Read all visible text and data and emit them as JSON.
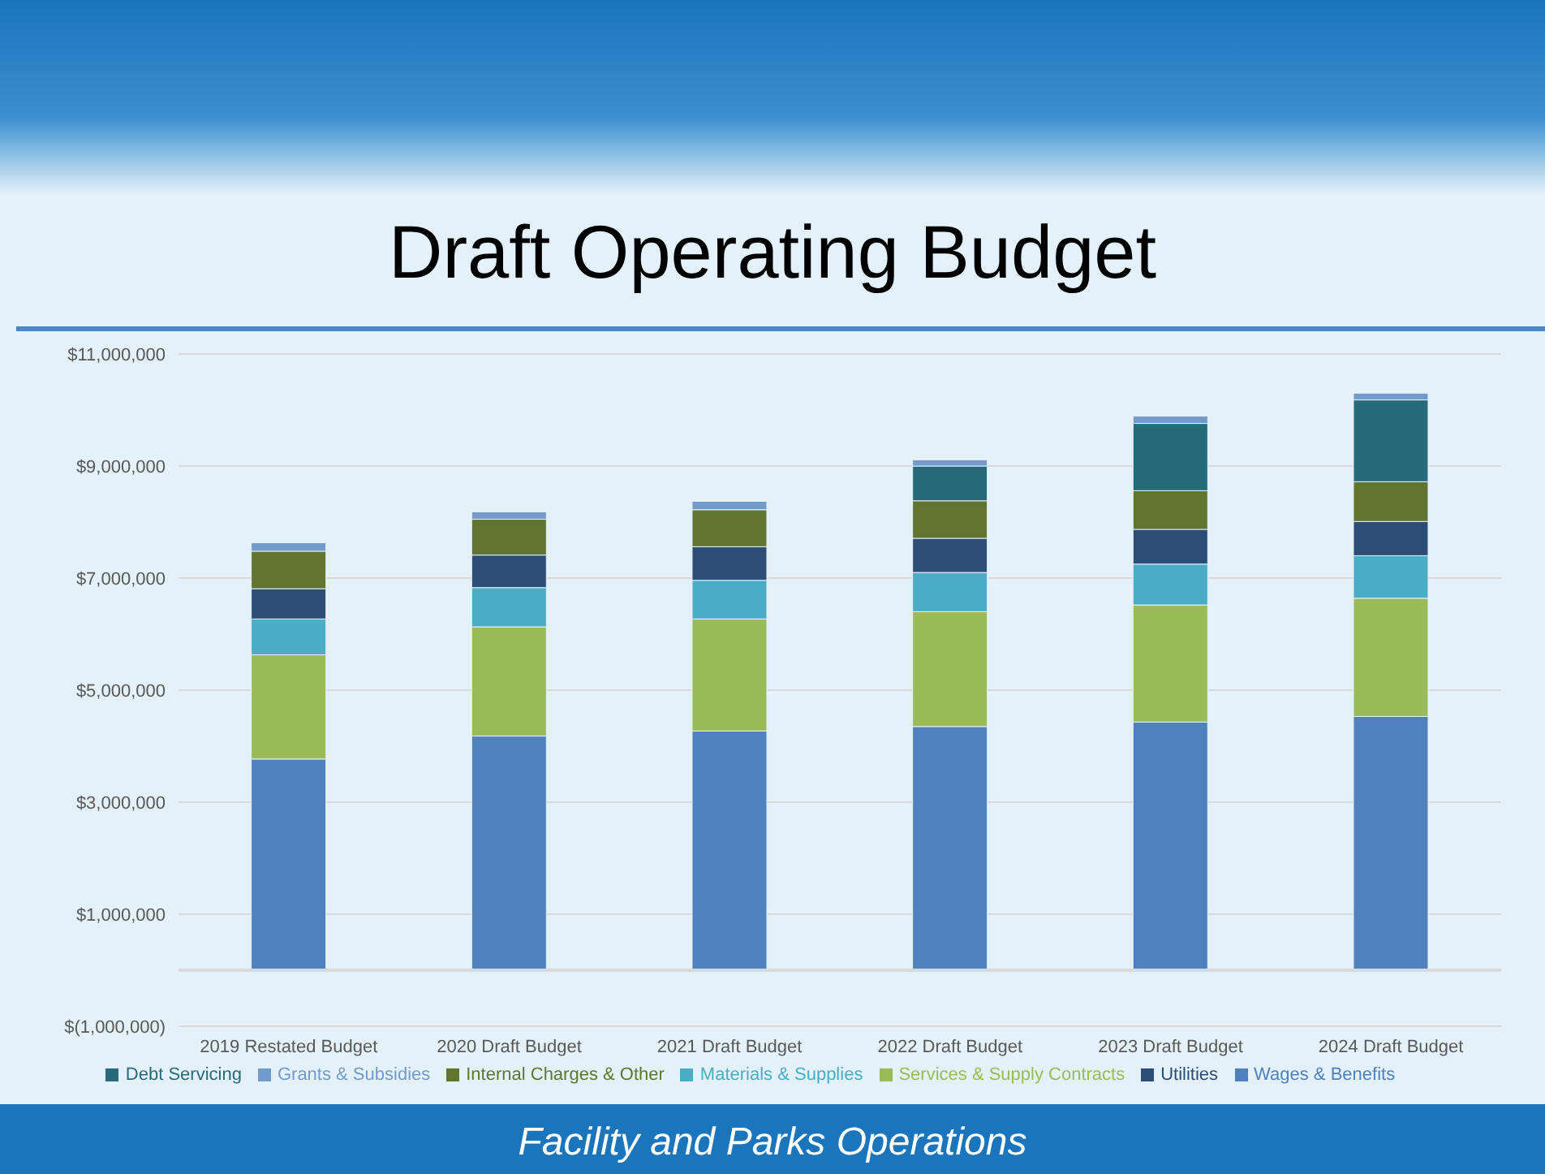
{
  "chart_data": {
    "type": "bar",
    "title": "Draft Operating Budget",
    "stacked": true,
    "categories": [
      "2019 Restated Budget",
      "2020 Draft Budget",
      "2021 Draft Budget",
      "2022 Draft Budget",
      "2023 Draft Budget",
      "2024 Draft Budget"
    ],
    "series": [
      {
        "name": "Wages & Benefits",
        "color": "#4f81bd",
        "values": [
          3770000,
          4180000,
          4270000,
          4350000,
          4430000,
          4530000
        ]
      },
      {
        "name": "Services & Supply Contracts",
        "color": "#9bbb59",
        "values": [
          1860000,
          1950000,
          2000000,
          2050000,
          2090000,
          2110000
        ]
      },
      {
        "name": "Materials & Supplies",
        "color": "#4bacc6",
        "values": [
          640000,
          700000,
          690000,
          700000,
          730000,
          760000
        ]
      },
      {
        "name": "Utilities",
        "color": "#2c4d75",
        "values": [
          540000,
          580000,
          600000,
          610000,
          620000,
          610000
        ]
      },
      {
        "name": "Internal Charges & Other",
        "color": "#5f7530",
        "values": [
          670000,
          640000,
          660000,
          670000,
          690000,
          710000
        ]
      },
      {
        "name": "Debt Servicing",
        "color": "#276a7c",
        "values": [
          0,
          0,
          0,
          620000,
          1200000,
          1460000
        ]
      },
      {
        "name": "Grants & Subsidies",
        "color": "#729aca",
        "values": [
          150000,
          130000,
          150000,
          110000,
          130000,
          120000
        ]
      }
    ],
    "ylim": [
      -1000000,
      11000000
    ],
    "yticks": [
      {
        "value": -1000000,
        "label": "$(1,000,000)"
      },
      {
        "value": 1000000,
        "label": "$1,000,000"
      },
      {
        "value": 3000000,
        "label": "$3,000,000"
      },
      {
        "value": 5000000,
        "label": "$5,000,000"
      },
      {
        "value": 7000000,
        "label": "$7,000,000"
      },
      {
        "value": 9000000,
        "label": "$9,000,000"
      },
      {
        "value": 11000000,
        "label": "$11,000,000"
      }
    ],
    "grid": "y",
    "legend": "bottom",
    "annotations": [
      "Facility and Parks Operations"
    ]
  }
}
